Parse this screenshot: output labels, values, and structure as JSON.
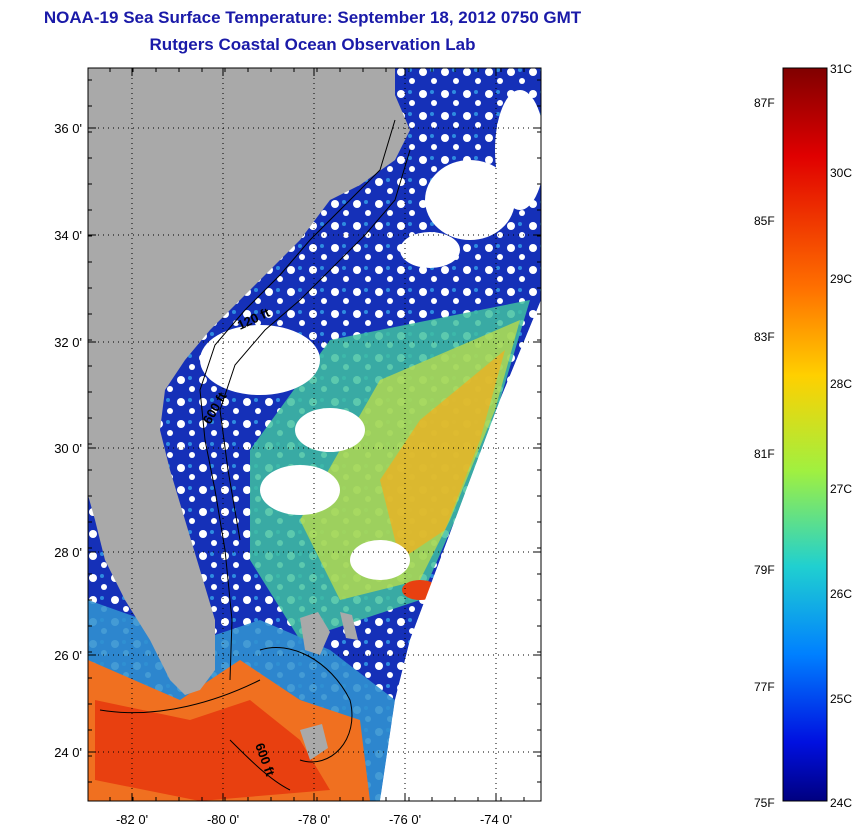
{
  "title": "NOAA-19 Sea Surface Temperature:  September 18, 2012 0750 GMT",
  "subtitle": "Rutgers Coastal Ocean Observation Lab",
  "map": {
    "lat_labels": [
      "36 0'",
      "34 0'",
      "32 0'",
      "30 0'",
      "28 0'",
      "26 0'",
      "24 0'"
    ],
    "lon_labels": [
      "-82 0'",
      "-80 0'",
      "-78 0'",
      "-76 0'",
      "-74 0'"
    ],
    "contour_labels": [
      "120 ft",
      "600 ft",
      "600 ft"
    ],
    "colors": {
      "land": "#a9a9a9",
      "cloud": "#ffffff",
      "water_cold": "#0a1a8a",
      "water_warm": "#e85a10"
    }
  },
  "colorbar": {
    "celsius": [
      "31C",
      "30C",
      "29C",
      "28C",
      "27C",
      "26C",
      "25C",
      "24C"
    ],
    "fahrenheit": [
      "87F",
      "85F",
      "83F",
      "81F",
      "79F",
      "77F",
      "75F"
    ]
  }
}
